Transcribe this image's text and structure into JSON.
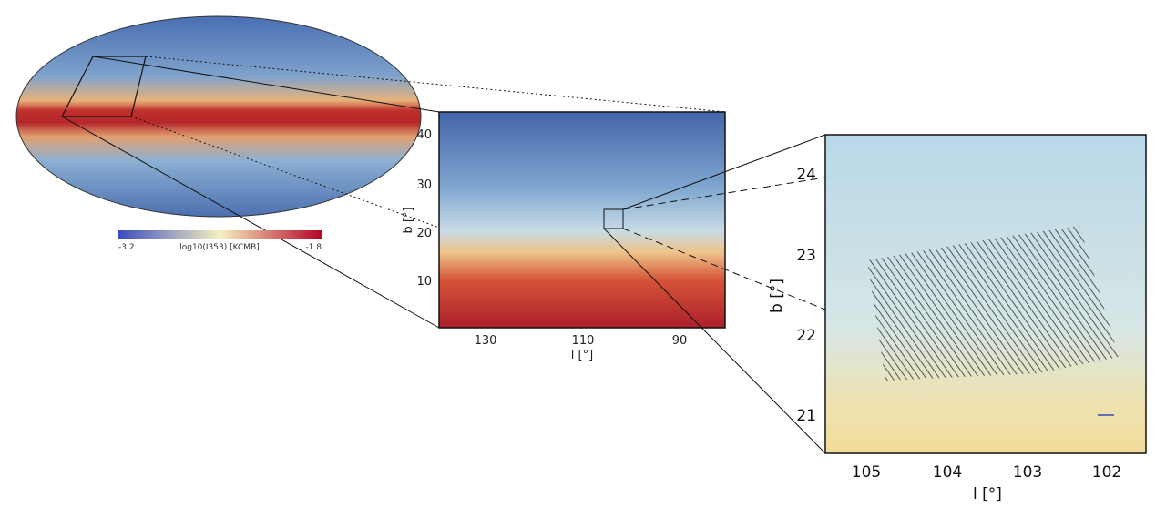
{
  "colorbar": {
    "min": "-3.2",
    "label": "log10(I353) [KCMB]",
    "max": "-1.8"
  },
  "zoom_panel": {
    "x_ticks": [
      "130",
      "110",
      "90"
    ],
    "y_ticks": [
      "40",
      "30",
      "20",
      "10"
    ],
    "x_label": "l [°]",
    "y_label": "b [°]"
  },
  "detail_panel": {
    "x_ticks": [
      "105",
      "104",
      "103",
      "102"
    ],
    "y_ticks": [
      "24",
      "23",
      "22",
      "21"
    ],
    "x_label": "l [°]",
    "y_label": "b [°]"
  }
}
